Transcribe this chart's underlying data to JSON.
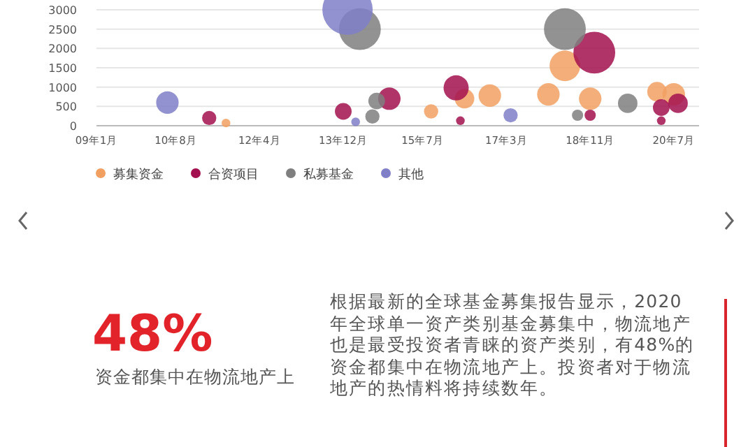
{
  "chart_data": {
    "type": "bubble",
    "xlim": [
      "2009-01",
      "2021-01"
    ],
    "ylim": [
      0,
      3000
    ],
    "xticks": [
      {
        "value": "2009-01",
        "label": "09年1月"
      },
      {
        "value": "2010-08",
        "label": "10年8月"
      },
      {
        "value": "2012-04",
        "label": "12年4月"
      },
      {
        "value": "2013-12",
        "label": "13年12月"
      },
      {
        "value": "2015-07",
        "label": "15年7月"
      },
      {
        "value": "2017-03",
        "label": "17年3月"
      },
      {
        "value": "2018-11",
        "label": "18年11月"
      },
      {
        "value": "2020-07",
        "label": "20年7月"
      }
    ],
    "yticks": [
      0,
      500,
      1000,
      1500,
      2000,
      2500,
      3000
    ],
    "grid": "y",
    "legend": "bottom",
    "series": [
      {
        "name": "募集资金",
        "color": "#f2a062",
        "x": [
          "2011-08",
          "2015-09",
          "2016-05",
          "2016-11",
          "2018-01",
          "2018-05",
          "2018-11",
          "2020-03",
          "2020-07"
        ],
        "values": [
          70,
          370,
          700,
          780,
          810,
          1550,
          700,
          880,
          810
        ],
        "sizes": [
          0.03,
          0.08,
          0.15,
          0.2,
          0.2,
          0.37,
          0.2,
          0.15,
          0.2
        ]
      },
      {
        "name": "合资项目",
        "color": "#a3104f",
        "x": [
          "2011-04",
          "2013-12",
          "2014-11",
          "2016-03",
          "2016-04",
          "2018-11",
          "2018-12",
          "2020-04",
          "2020-04",
          "2020-08"
        ],
        "values": [
          200,
          370,
          700,
          980,
          130,
          270,
          1890,
          470,
          130,
          580
        ],
        "sizes": [
          0.08,
          0.11,
          0.2,
          0.25,
          0.03,
          0.05,
          0.69,
          0.11,
          0.03,
          0.15
        ]
      },
      {
        "name": "私募基金",
        "color": "#7f7f7f",
        "x": [
          "2014-07",
          "2014-08",
          "2014-04",
          "2018-05",
          "2018-08",
          "2019-08"
        ],
        "values": [
          240,
          640,
          2500,
          2500,
          270,
          580
        ],
        "sizes": [
          0.08,
          0.11,
          0.69,
          0.69,
          0.05,
          0.15
        ]
      },
      {
        "name": "其他",
        "color": "#7f7fc8",
        "x": [
          "2010-06",
          "2014-03",
          "2017-04",
          "2014-01"
        ],
        "values": [
          600,
          100,
          270,
          3000
        ],
        "sizes": [
          0.2,
          0.03,
          0.08,
          1
        ]
      }
    ],
    "annotations": [
      "48%",
      "资金都集中在物流地产上",
      "根据最新的全球基金募集报告显示，2020年全球单一资产类别基金募集中，物流地产也是最受投资者青睐的资产类别，有48%的资金都集中在物流地产上。投资者对于物流地产的热情料将持续数年。"
    ]
  }
}
